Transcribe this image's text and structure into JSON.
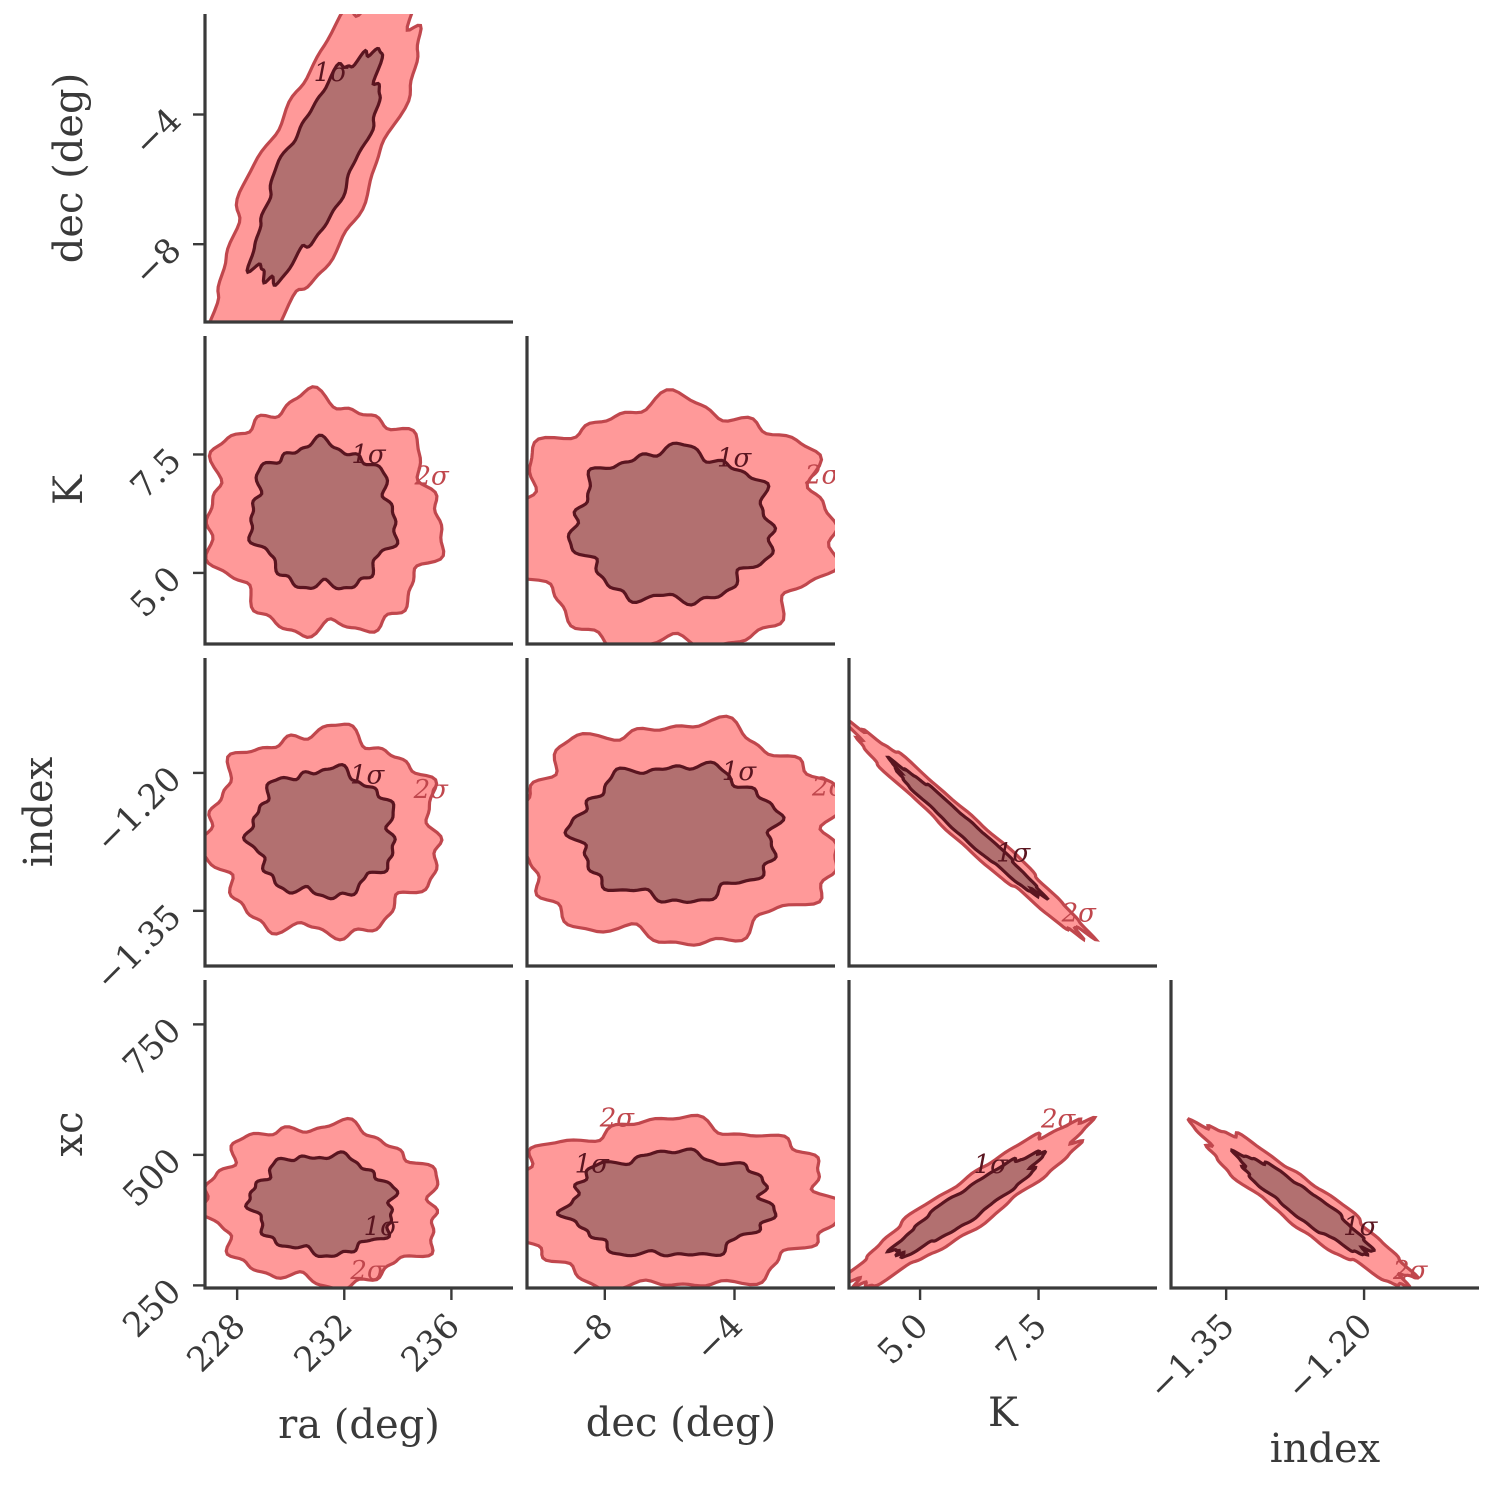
{
  "colors": {
    "outer_fill": "#ff9999",
    "outer_edge": "#c0474d",
    "inner_fill": "#b27070",
    "inner_edge": "#5a1520",
    "axis": "#3a3a3a"
  },
  "chart_data": {
    "type": "corner-contour",
    "parameters": [
      {
        "key": "ra",
        "label": "ra (deg)",
        "range": [
          226.8,
          238.3
        ],
        "ticks": [
          228,
          232,
          236
        ],
        "tick_labels": [
          "228",
          "232",
          "236"
        ]
      },
      {
        "key": "dec",
        "label": "dec (deg)",
        "range": [
          -10.4,
          -0.9
        ],
        "ticks": [
          -8,
          -4
        ],
        "tick_labels": [
          "−8",
          "−4"
        ]
      },
      {
        "key": "K",
        "label": "K",
        "range": [
          3.5,
          10.0
        ],
        "ticks": [
          5.0,
          7.5
        ],
        "tick_labels": [
          "5.0",
          "7.5"
        ]
      },
      {
        "key": "index",
        "label": "index",
        "range": [
          -1.41,
          -1.075
        ],
        "ticks": [
          -1.35,
          -1.2
        ],
        "tick_labels": [
          "−1.35",
          "−1.20"
        ]
      },
      {
        "key": "xc",
        "label": "xc",
        "range": [
          245,
          835
        ],
        "ticks": [
          250,
          500,
          750
        ],
        "tick_labels": [
          "250",
          "500",
          "750"
        ]
      }
    ],
    "levels": [
      "1σ",
      "2σ"
    ],
    "contours": [
      {
        "x": "ra",
        "y": "dec",
        "center": [
          231.0,
          -5.6
        ],
        "sigma": [
          1.55,
          2.3
        ],
        "rho": 0.8,
        "x_range": [
          226.8,
          238.3
        ],
        "y_range": [
          -10.4,
          -0.9
        ]
      },
      {
        "x": "ra",
        "y": "K",
        "center": [
          231.2,
          6.2
        ],
        "sigma": [
          1.75,
          1.0
        ],
        "rho": -0.05,
        "x_range": [
          226.8,
          238.3
        ],
        "y_range": [
          3.5,
          10.0
        ]
      },
      {
        "x": "dec",
        "y": "K",
        "center": [
          -5.9,
          6.0
        ],
        "sigma": [
          2.0,
          1.05
        ],
        "rho": 0.0,
        "x_range": [
          -10.4,
          -0.9
        ],
        "y_range": [
          3.5,
          10.0
        ]
      },
      {
        "x": "ra",
        "y": "index",
        "center": [
          231.2,
          -1.265
        ],
        "sigma": [
          1.75,
          0.045
        ],
        "rho": 0.0,
        "x_range": [
          226.8,
          238.3
        ],
        "y_range": [
          -1.41,
          -1.075
        ]
      },
      {
        "x": "dec",
        "y": "index",
        "center": [
          -5.8,
          -1.265
        ],
        "sigma": [
          2.05,
          0.048
        ],
        "rho": 0.0,
        "x_range": [
          -10.4,
          -0.9
        ],
        "y_range": [
          -1.41,
          -1.075
        ]
      },
      {
        "x": "K",
        "y": "index",
        "center": [
          6.0,
          -1.262
        ],
        "sigma": [
          1.02,
          0.047
        ],
        "rho": -0.985,
        "x_range": [
          3.5,
          10.0
        ],
        "y_range": [
          -1.41,
          -1.075
        ]
      },
      {
        "x": "ra",
        "y": "xc",
        "center": [
          231.2,
          405
        ],
        "sigma": [
          1.75,
          62
        ],
        "rho": -0.05,
        "x_range": [
          226.8,
          238.3
        ],
        "y_range": [
          245,
          835
        ]
      },
      {
        "x": "dec",
        "y": "xc",
        "center": [
          -6.0,
          405
        ],
        "sigma": [
          2.05,
          65
        ],
        "rho": 0.02,
        "x_range": [
          -10.4,
          -0.9
        ],
        "y_range": [
          245,
          835
        ]
      },
      {
        "x": "K",
        "y": "xc",
        "center": [
          6.0,
          405
        ],
        "sigma": [
          1.02,
          64
        ],
        "rho": 0.94,
        "x_range": [
          3.5,
          10.0
        ],
        "y_range": [
          245,
          835
        ]
      },
      {
        "x": "index",
        "y": "xc",
        "center": [
          -1.265,
          405
        ],
        "sigma": [
          0.047,
          62
        ],
        "rho": -0.94,
        "x_range": [
          -1.41,
          -1.075
        ],
        "y_range": [
          245,
          835
        ]
      }
    ],
    "grid": false,
    "legend": "none"
  }
}
